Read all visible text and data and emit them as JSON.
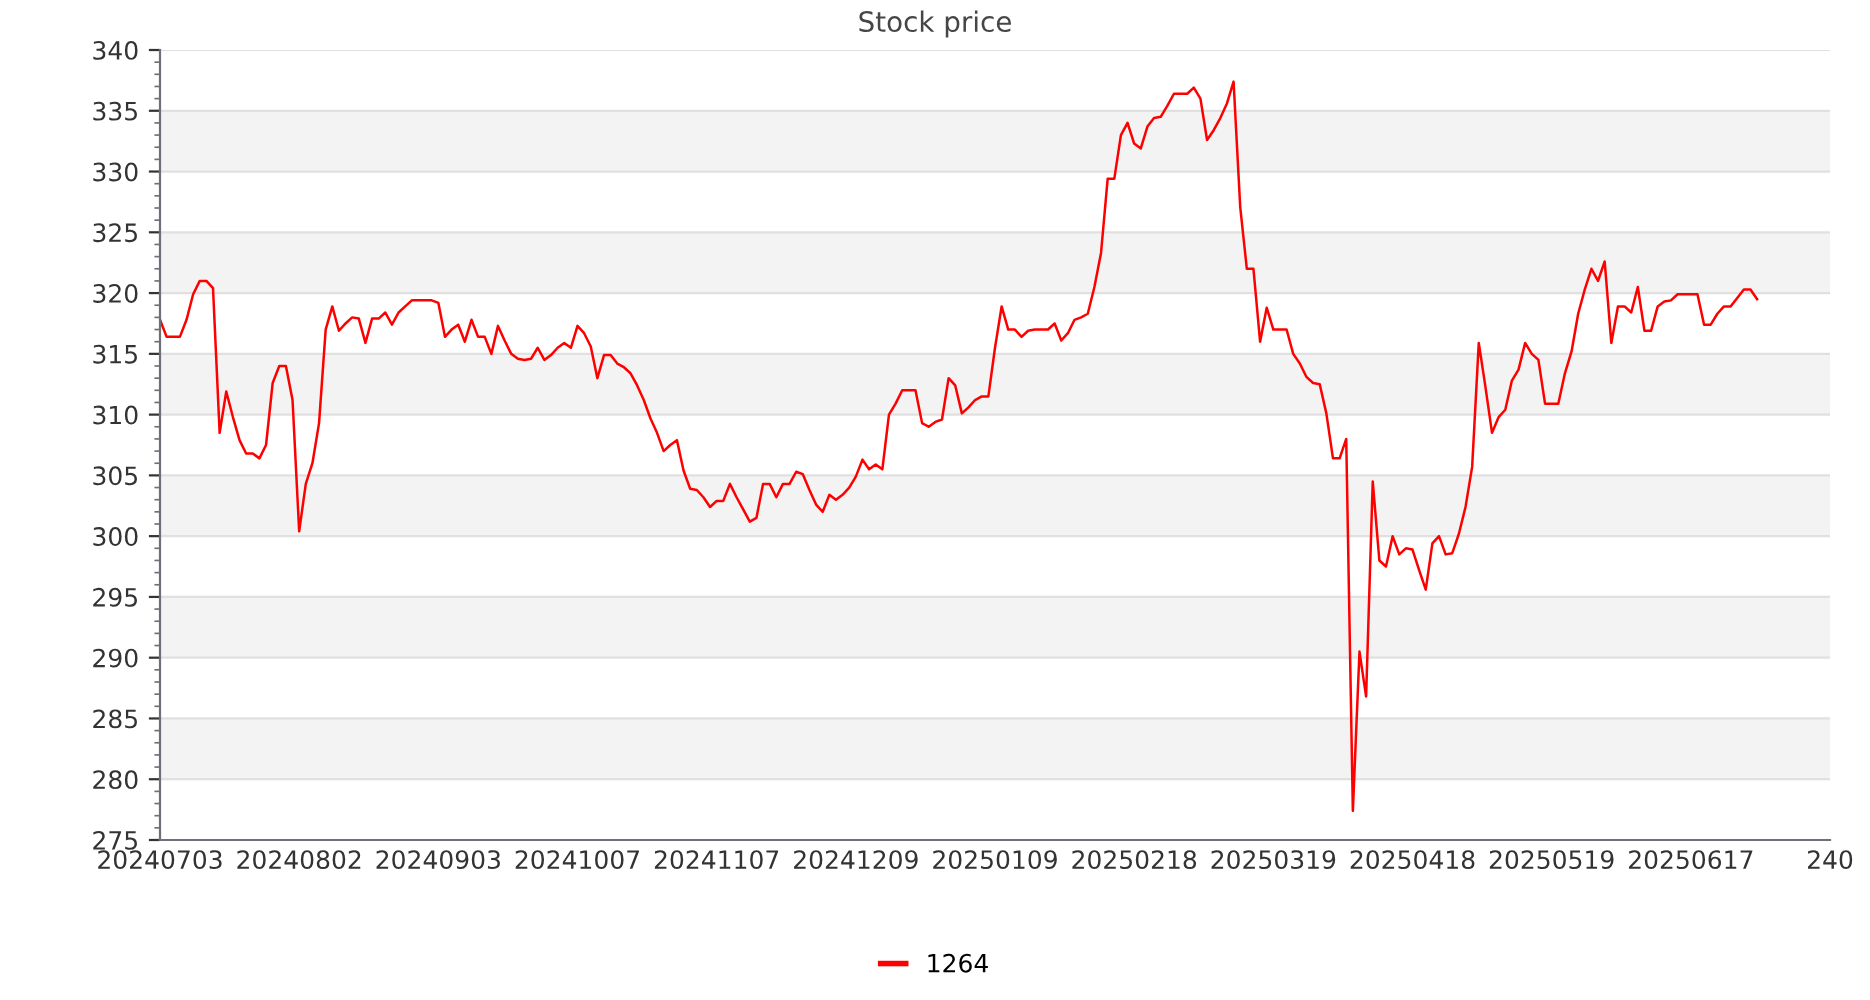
{
  "chart_data": {
    "type": "line",
    "title": "Stock price",
    "categories": [
      "20240703",
      null,
      null,
      null,
      null,
      null,
      null,
      null,
      null,
      null,
      null,
      null,
      null,
      null,
      null,
      null,
      null,
      null,
      null,
      null,
      null,
      "20240802",
      null,
      null,
      null,
      null,
      null,
      null,
      null,
      null,
      null,
      null,
      null,
      null,
      null,
      null,
      null,
      null,
      null,
      null,
      null,
      null,
      "20240903",
      null,
      null,
      null,
      null,
      null,
      null,
      null,
      null,
      null,
      null,
      null,
      null,
      null,
      null,
      null,
      null,
      null,
      null,
      null,
      null,
      "20241007",
      null,
      null,
      null,
      null,
      null,
      null,
      null,
      null,
      null,
      null,
      null,
      null,
      null,
      null,
      null,
      null,
      null,
      null,
      null,
      null,
      "20241107",
      null,
      null,
      null,
      null,
      null,
      null,
      null,
      null,
      null,
      null,
      null,
      null,
      null,
      null,
      null,
      null,
      null,
      null,
      null,
      null,
      "20241209",
      null,
      null,
      null,
      null,
      null,
      null,
      null,
      null,
      null,
      null,
      null,
      null,
      null,
      null,
      null,
      null,
      null,
      null,
      null,
      null,
      "20250109",
      null,
      null,
      null,
      null,
      null,
      null,
      null,
      null,
      null,
      null,
      null,
      null,
      null,
      null,
      null,
      null,
      null,
      null,
      null,
      null,
      "20250218",
      null,
      null,
      null,
      null,
      null,
      null,
      null,
      null,
      null,
      null,
      null,
      null,
      null,
      null,
      null,
      null,
      null,
      null,
      null,
      null,
      "20250319",
      null,
      null,
      null,
      null,
      null,
      null,
      null,
      null,
      null,
      null,
      null,
      null,
      null,
      null,
      null,
      null,
      null,
      null,
      null,
      null,
      "20250418",
      null,
      null,
      null,
      null,
      null,
      null,
      null,
      null,
      null,
      null,
      null,
      null,
      null,
      null,
      null,
      null,
      null,
      null,
      null,
      null,
      "20250519",
      null,
      null,
      null,
      null,
      null,
      null,
      null,
      null,
      null,
      null,
      null,
      null,
      null,
      null,
      null,
      null,
      null,
      null,
      null,
      null,
      "20250617",
      null,
      null,
      null,
      null,
      null,
      null,
      null,
      null,
      null,
      null,
      null,
      null,
      null,
      null,
      null,
      null,
      null,
      null,
      null,
      null,
      "240"
    ],
    "series": [
      {
        "name": "1264",
        "color": "#ff0000",
        "values": [
          317.8,
          316.4,
          316.4,
          316.4,
          317.8,
          319.9,
          321.0,
          321.0,
          320.4,
          308.5,
          311.9,
          309.8,
          307.9,
          306.8,
          306.8,
          306.4,
          307.5,
          312.6,
          314.0,
          314.0,
          311.2,
          300.4,
          304.3,
          306.0,
          309.3,
          317.0,
          318.9,
          316.9,
          317.5,
          318.0,
          317.9,
          315.9,
          317.9,
          317.9,
          318.4,
          317.4,
          318.4,
          318.9,
          319.4,
          319.4,
          319.4,
          319.4,
          319.2,
          316.4,
          317.0,
          317.4,
          316.0,
          317.8,
          316.4,
          316.4,
          315.0,
          317.3,
          316.1,
          315.0,
          314.6,
          314.5,
          314.6,
          315.5,
          314.5,
          314.9,
          315.5,
          315.9,
          315.5,
          317.3,
          316.7,
          315.6,
          313.0,
          314.9,
          314.9,
          314.2,
          313.9,
          313.4,
          312.4,
          311.2,
          309.7,
          308.5,
          307.0,
          307.5,
          307.9,
          305.4,
          303.9,
          303.8,
          303.2,
          302.4,
          302.9,
          302.9,
          304.3,
          303.2,
          302.2,
          301.2,
          301.5,
          304.3,
          304.3,
          303.2,
          304.3,
          304.3,
          305.3,
          305.1,
          303.8,
          302.6,
          302.0,
          303.4,
          303.0,
          303.4,
          304.0,
          304.9,
          306.3,
          305.5,
          305.9,
          305.5,
          310.0,
          310.9,
          312.0,
          312.0,
          312.0,
          309.3,
          309.0,
          309.4,
          309.6,
          313.0,
          312.4,
          310.1,
          310.6,
          311.2,
          311.5,
          311.5,
          315.5,
          318.9,
          317.0,
          317.0,
          316.4,
          316.9,
          317.0,
          317.0,
          317.0,
          317.5,
          316.1,
          316.7,
          317.8,
          318.0,
          318.3,
          320.5,
          323.3,
          329.4,
          329.4,
          333.0,
          334.0,
          332.3,
          331.9,
          333.7,
          334.4,
          334.5,
          335.4,
          336.4,
          336.4,
          336.4,
          336.9,
          336.0,
          332.6,
          333.4,
          334.4,
          335.6,
          337.4,
          327.1,
          322.0,
          322.0,
          316.0,
          318.8,
          317.0,
          317.0,
          317.0,
          315.0,
          314.2,
          313.1,
          312.6,
          312.5,
          310.1,
          306.4,
          306.4,
          308.0,
          277.4,
          290.5,
          286.8,
          304.5,
          298.0,
          297.5,
          300.0,
          298.5,
          299.0,
          298.9,
          297.2,
          295.6,
          299.4,
          300.0,
          298.5,
          298.6,
          300.2,
          302.4,
          305.7,
          315.9,
          312.3,
          308.5,
          309.8,
          310.4,
          312.8,
          313.7,
          315.9,
          315.0,
          314.5,
          310.9,
          310.9,
          310.9,
          313.4,
          315.2,
          318.3,
          320.3,
          322.0,
          321.0,
          322.6,
          315.9,
          318.9,
          318.9,
          318.4,
          320.5,
          316.9,
          316.9,
          318.9,
          319.3,
          319.4,
          319.9,
          319.9,
          319.9,
          319.9,
          317.4,
          317.4,
          318.3,
          318.9,
          318.9,
          319.6,
          320.3,
          320.3,
          319.5,
          null,
          null,
          null,
          null,
          null,
          null,
          null,
          null,
          null,
          null,
          null
        ]
      }
    ],
    "ylim": [
      275,
      340
    ],
    "yticks": [
      275,
      280,
      285,
      290,
      295,
      300,
      305,
      310,
      315,
      320,
      325,
      330,
      335,
      340
    ],
    "grid": "y",
    "legend": "bottom",
    "marker": "none",
    "line_style": "solid"
  }
}
